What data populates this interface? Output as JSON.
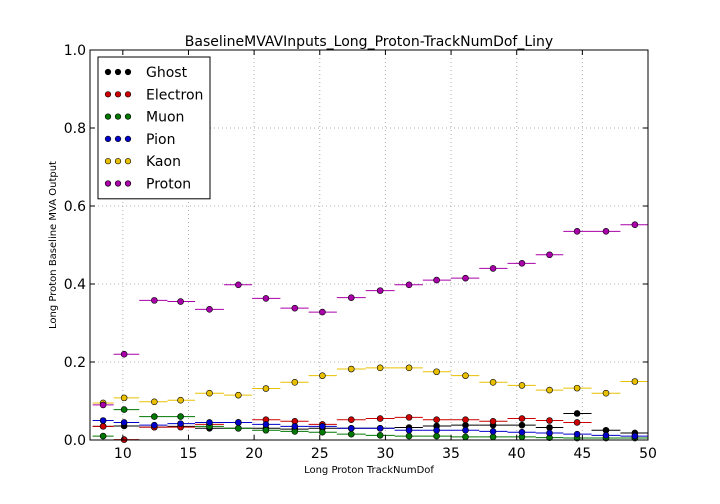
{
  "chart_data": {
    "type": "scatter",
    "title": "BaselineMVAVInputs_Long_Proton-TrackNumDof_Liny",
    "xlabel": "Long Proton TrackNumDof",
    "ylabel": "Long Proton Baseline MVA Output",
    "xlim": [
      7.5,
      50
    ],
    "ylim": [
      0,
      1.0
    ],
    "xticks": [
      "10",
      "15",
      "20",
      "25",
      "30",
      "35",
      "40",
      "45",
      "50"
    ],
    "yticks": [
      "0.0",
      "0.2",
      "0.4",
      "0.6",
      "0.8",
      "1.0"
    ],
    "grid": true,
    "legend_position": "top-left",
    "x": [
      8.5,
      10.1,
      12.4,
      14.4,
      16.6,
      18.8,
      20.9,
      23.1,
      25.2,
      27.4,
      29.6,
      31.8,
      33.9,
      36.1,
      38.2,
      40.4,
      42.5,
      44.6,
      46.8,
      49.0
    ],
    "series": [
      {
        "name": "Ghost",
        "color": "#000000",
        "values": [
          0.035,
          0.036,
          0.033,
          0.035,
          0.03,
          0.03,
          0.03,
          0.028,
          0.03,
          0.03,
          0.03,
          0.032,
          0.036,
          0.038,
          0.038,
          0.038,
          0.032,
          0.068,
          0.025,
          0.018
        ]
      },
      {
        "name": "Electron",
        "color": "#cc0000",
        "values": [
          0.035,
          0.001,
          0.033,
          0.033,
          0.04,
          0.045,
          0.052,
          0.048,
          0.04,
          0.052,
          0.055,
          0.058,
          0.052,
          0.052,
          0.048,
          0.055,
          0.05,
          0.045,
          null,
          null
        ]
      },
      {
        "name": "Muon",
        "color": "#007700",
        "values": [
          0.01,
          0.078,
          0.06,
          0.06,
          0.035,
          0.03,
          0.025,
          0.022,
          0.02,
          0.015,
          0.012,
          0.01,
          0.01,
          0.008,
          0.008,
          0.008,
          0.006,
          0.005,
          0.005,
          0.005
        ]
      },
      {
        "name": "Pion",
        "color": "#0000cc",
        "values": [
          0.05,
          0.045,
          0.038,
          0.042,
          0.045,
          0.045,
          0.04,
          0.035,
          0.035,
          0.03,
          0.03,
          0.025,
          0.025,
          0.025,
          0.022,
          0.02,
          0.018,
          0.015,
          0.012,
          0.01
        ]
      },
      {
        "name": "Kaon",
        "color": "#e8c000",
        "values": [
          0.095,
          0.108,
          0.098,
          0.102,
          0.12,
          0.115,
          0.132,
          0.148,
          0.165,
          0.182,
          0.185,
          0.185,
          0.175,
          0.165,
          0.148,
          0.14,
          0.128,
          0.133,
          0.12,
          0.15
        ]
      },
      {
        "name": "Proton",
        "color": "#aa00aa",
        "values": [
          0.09,
          0.22,
          0.358,
          0.355,
          0.335,
          0.398,
          0.363,
          0.338,
          0.328,
          0.365,
          0.383,
          0.398,
          0.41,
          0.415,
          0.44,
          0.453,
          0.475,
          0.535,
          0.535,
          0.552
        ]
      }
    ]
  }
}
